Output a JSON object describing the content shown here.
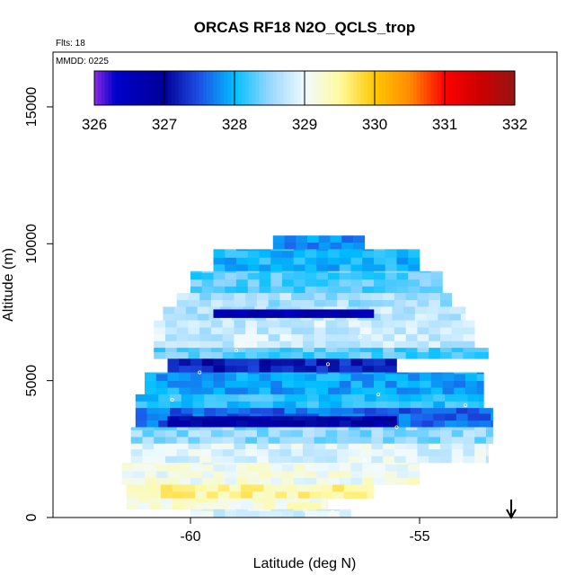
{
  "chart_data": {
    "type": "heatmap",
    "title": "ORCAS RF18 N2O_QCLS_trop",
    "flights_text": "Flts: 18",
    "date_text": "MMDD: 0225",
    "xlabel": "Latitude (deg N)",
    "ylabel": "Altitude (m)",
    "xlim": [
      -63,
      -52
    ],
    "ylim": [
      0,
      17000
    ],
    "xticks": [
      -60,
      -55
    ],
    "yticks": [
      0,
      5000,
      10000,
      15000
    ],
    "colorbar": {
      "ticks": [
        326,
        327,
        328,
        329,
        330,
        331,
        332
      ],
      "range": [
        326,
        332
      ]
    },
    "arrow_latitude": -53,
    "cells": [
      {
        "lat_range": [
          -58.2,
          -56.2
        ],
        "alt_range": [
          9800,
          10300
        ],
        "value": 327.8
      },
      {
        "lat_range": [
          -59.5,
          -55.0
        ],
        "alt_range": [
          9000,
          9800
        ],
        "value": 328.0
      },
      {
        "lat_range": [
          -60.0,
          -54.5
        ],
        "alt_range": [
          8200,
          9000
        ],
        "value": 328.3
      },
      {
        "lat_range": [
          -60.3,
          -54.3
        ],
        "alt_range": [
          7700,
          8200
        ],
        "value": 328.6
      },
      {
        "lat_range": [
          -60.6,
          -54.0
        ],
        "alt_range": [
          7200,
          7700
        ],
        "value": 328.7
      },
      {
        "lat_range": [
          -59.5,
          -56.0
        ],
        "alt_range": [
          7300,
          7600
        ],
        "value": 326.7
      },
      {
        "lat_range": [
          -60.8,
          -53.8
        ],
        "alt_range": [
          6200,
          7200
        ],
        "value": 328.8
      },
      {
        "lat_range": [
          -60.8,
          -53.5
        ],
        "alt_range": [
          5800,
          6200
        ],
        "value": 328.3
      },
      {
        "lat_range": [
          -60.5,
          -55.5
        ],
        "alt_range": [
          5300,
          5800
        ],
        "value": 327.2
      },
      {
        "lat_range": [
          -61.0,
          -53.6
        ],
        "alt_range": [
          4500,
          5300
        ],
        "value": 327.9
      },
      {
        "lat_range": [
          -61.2,
          -53.6
        ],
        "alt_range": [
          4000,
          4500
        ],
        "value": 328.1
      },
      {
        "lat_range": [
          -61.2,
          -53.4
        ],
        "alt_range": [
          3300,
          4000
        ],
        "value": 327.6
      },
      {
        "lat_range": [
          -60.5,
          -55.5
        ],
        "alt_range": [
          3300,
          3700
        ],
        "value": 326.9
      },
      {
        "lat_range": [
          -61.3,
          -53.4
        ],
        "alt_range": [
          2700,
          3300
        ],
        "value": 328.5
      },
      {
        "lat_range": [
          -61.3,
          -53.5
        ],
        "alt_range": [
          2000,
          2700
        ],
        "value": 328.9
      },
      {
        "lat_range": [
          -61.5,
          -55.0
        ],
        "alt_range": [
          1200,
          2000
        ],
        "value": 329.1
      },
      {
        "lat_range": [
          -61.4,
          -56.0
        ],
        "alt_range": [
          700,
          1200
        ],
        "value": 329.5
      },
      {
        "lat_range": [
          -61.4,
          -57.0
        ],
        "alt_range": [
          300,
          700
        ],
        "value": 329.2
      },
      {
        "lat_range": [
          -60.0,
          -56.5
        ],
        "alt_range": [
          0,
          300
        ],
        "value": 328.9
      }
    ]
  }
}
